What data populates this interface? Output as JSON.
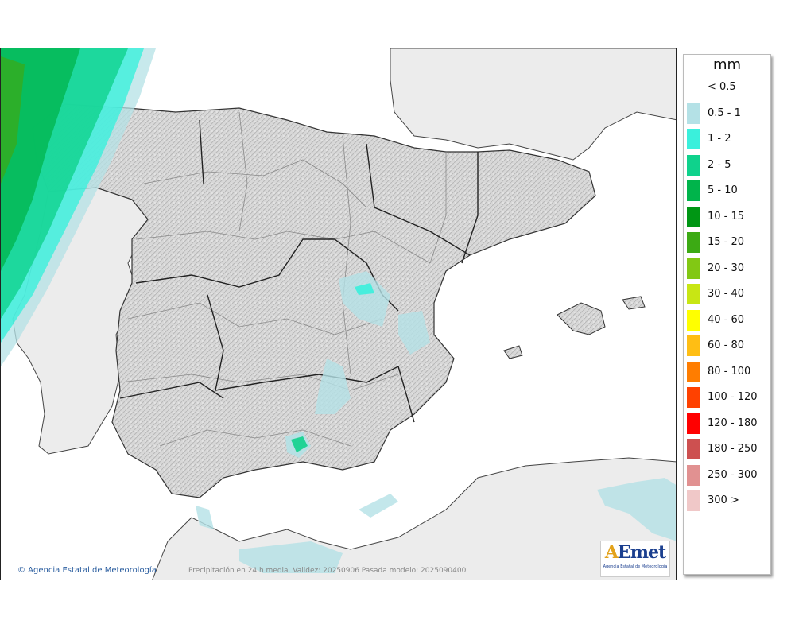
{
  "legend": {
    "unit": "mm",
    "items": [
      {
        "label": "< 0.5",
        "color": "#ffffff"
      },
      {
        "label": "0.5 - 1",
        "color": "#b4e1e6"
      },
      {
        "label": "1 - 2",
        "color": "#3af0dc"
      },
      {
        "label": "2 - 5",
        "color": "#0fd28c"
      },
      {
        "label": "5 - 10",
        "color": "#00b44b"
      },
      {
        "label": "10 - 15",
        "color": "#009614"
      },
      {
        "label": "15 - 20",
        "color": "#3caa14"
      },
      {
        "label": "20 - 30",
        "color": "#82c814"
      },
      {
        "label": "30 - 40",
        "color": "#c8e614"
      },
      {
        "label": "40 - 60",
        "color": "#ffff00"
      },
      {
        "label": "60 - 80",
        "color": "#ffbe14"
      },
      {
        "label": "80 - 100",
        "color": "#ff7d00"
      },
      {
        "label": "100 - 120",
        "color": "#ff4100"
      },
      {
        "label": "120 - 180",
        "color": "#ff0000"
      },
      {
        "label": "180 - 250",
        "color": "#cd5050"
      },
      {
        "label": "250 - 300",
        "color": "#e19191"
      },
      {
        "label": "300 >",
        "color": "#f0c8c8"
      }
    ]
  },
  "footer": {
    "copyright": "© Agencia Estatal de Meteorología",
    "caption": "Precipitación en 24 h media. Validez: 20250906 Pasada modelo: 2025090400"
  },
  "logo": {
    "text_a": "A",
    "text_rest": "Emet",
    "subtitle": "Agencia Estatal de Meteorología"
  }
}
